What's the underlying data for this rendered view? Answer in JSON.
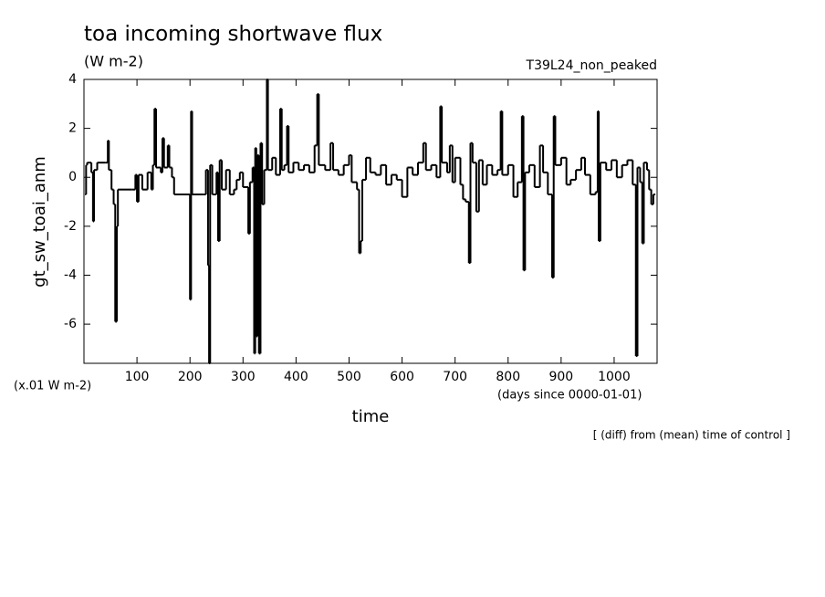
{
  "chart_data": {
    "type": "step",
    "title": "toa incoming shortwave flux",
    "units": "(W m-2)",
    "experiment": "T39L24_non_peaked",
    "ylabel": "gt_sw_toai_anm",
    "xlabel": "time",
    "y_scale_note": "(x.01 W m-2)",
    "x_units": "(days since 0000-01-01)",
    "footnote": "[ (diff) from (mean) time of control ]",
    "color": "#000000",
    "xlim": [
      0,
      1081
    ],
    "ylim": [
      -7.6,
      4
    ],
    "xticks": [
      100,
      200,
      300,
      400,
      500,
      600,
      700,
      800,
      900,
      1000
    ],
    "yticks": [
      -6,
      -4,
      -2,
      0,
      2,
      4
    ],
    "x": [
      2,
      4,
      6,
      10,
      14,
      17,
      19,
      25,
      40,
      45,
      47,
      52,
      56,
      59,
      62,
      64,
      90,
      97,
      100,
      103,
      110,
      120,
      127,
      130,
      133,
      136,
      145,
      148,
      151,
      158,
      161,
      166,
      170,
      198,
      200,
      202,
      204,
      226,
      230,
      234,
      236,
      238,
      242,
      250,
      253,
      256,
      260,
      268,
      275,
      283,
      288,
      294,
      300,
      310,
      313,
      318,
      321,
      323,
      325,
      327,
      330,
      333,
      336,
      340,
      345,
      347,
      355,
      362,
      370,
      373,
      378,
      383,
      386,
      395,
      405,
      415,
      425,
      435,
      440,
      443,
      455,
      465,
      470,
      480,
      490,
      500,
      505,
      515,
      519,
      522,
      525,
      532,
      540,
      550,
      560,
      570,
      580,
      590,
      600,
      610,
      620,
      630,
      640,
      645,
      655,
      665,
      672,
      675,
      685,
      690,
      695,
      700,
      710,
      715,
      720,
      726,
      729,
      733,
      740,
      745,
      752,
      760,
      770,
      780,
      786,
      789,
      800,
      810,
      818,
      826,
      829,
      832,
      840,
      850,
      860,
      866,
      875,
      883,
      886,
      889,
      900,
      910,
      918,
      928,
      938,
      945,
      955,
      965,
      969,
      971,
      974,
      985,
      995,
      1005,
      1015,
      1025,
      1035,
      1041,
      1044,
      1049,
      1053,
      1056,
      1062,
      1066,
      1070,
      1074,
      1076
    ],
    "values": [
      -0.7,
      0.5,
      0.6,
      0.6,
      0.2,
      -1.8,
      0.3,
      0.6,
      0.6,
      1.5,
      0.3,
      -0.5,
      -1.1,
      -5.9,
      -2,
      -0.5,
      -0.5,
      0.1,
      -1,
      0.1,
      -0.5,
      0.2,
      -0.5,
      0.5,
      2.8,
      0.4,
      0.2,
      1.6,
      0.4,
      1.3,
      0.4,
      0,
      -0.7,
      -0.7,
      -5,
      2.7,
      -0.7,
      -0.7,
      0.3,
      -3.6,
      -7.6,
      0.5,
      -0.7,
      0.2,
      -2.6,
      0.7,
      -0.5,
      0.3,
      -0.7,
      -0.5,
      -0.1,
      0.2,
      -0.4,
      -2.3,
      -0.2,
      0.4,
      -7.2,
      1.2,
      -6.5,
      0.9,
      -7.2,
      1.4,
      -1.1,
      0.3,
      4,
      0.3,
      0.8,
      0.1,
      2.8,
      0.3,
      0.5,
      2.1,
      0.2,
      0.6,
      0.3,
      0.5,
      0.2,
      1.3,
      3.4,
      0.5,
      0.3,
      1.4,
      0.3,
      0.1,
      0.5,
      0.9,
      -0.2,
      -0.5,
      -3.1,
      -2.6,
      -0.1,
      0.8,
      0.2,
      0.1,
      0.5,
      -0.3,
      0.1,
      -0.1,
      -0.8,
      0.4,
      0.1,
      0.6,
      1.4,
      0.3,
      0.5,
      0,
      2.9,
      0.6,
      0.2,
      1.3,
      -0.2,
      0.8,
      -0.3,
      -0.9,
      -1,
      -3.5,
      1.4,
      0.6,
      -1.4,
      0.7,
      -0.3,
      0.5,
      0.1,
      0.3,
      2.7,
      0.1,
      0.5,
      -0.8,
      -0.2,
      2.5,
      -3.8,
      0.2,
      0.5,
      -0.4,
      1.3,
      0.2,
      -0.7,
      -4.1,
      2.5,
      0.5,
      0.8,
      -0.3,
      -0.1,
      0.3,
      0.8,
      0.1,
      -0.7,
      -0.6,
      2.7,
      -2.6,
      0.6,
      0.3,
      0.7,
      0,
      0.5,
      0.7,
      -0.3,
      -7.3,
      0.4,
      -0.2,
      -2.7,
      0.6,
      0.3,
      -0.5,
      -1.1,
      -0.7,
      -0.7
    ]
  }
}
